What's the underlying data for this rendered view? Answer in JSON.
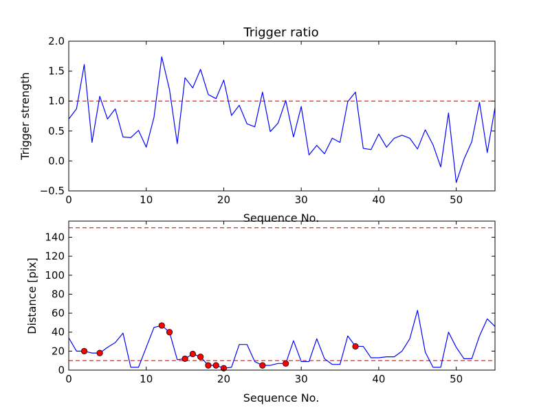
{
  "colors": {
    "line": "#0000ff",
    "threshold": "#ff0000",
    "marker_fill": "#ff0000",
    "marker_edge": "#000000",
    "axis": "#000000"
  },
  "chart_data": [
    {
      "type": "line",
      "title": "Trigger ratio",
      "xlabel": "Sequence No.",
      "ylabel": "Trigger strength",
      "xlim": [
        0,
        55
      ],
      "ylim": [
        -0.5,
        2.0
      ],
      "xticks": [
        0,
        10,
        20,
        30,
        40,
        50
      ],
      "yticks": [
        -0.5,
        0.0,
        0.5,
        1.0,
        1.5,
        2.0
      ],
      "ytick_labels": [
        "−0.5",
        "0.0",
        "0.5",
        "1.0",
        "1.5",
        "2.0"
      ],
      "hlines": [
        1.0
      ],
      "series": [
        {
          "name": "trigger strength",
          "x": [
            0,
            1,
            2,
            3,
            4,
            5,
            6,
            7,
            8,
            9,
            10,
            11,
            12,
            13,
            14,
            15,
            16,
            17,
            18,
            19,
            20,
            21,
            22,
            23,
            24,
            25,
            26,
            27,
            28,
            29,
            30,
            31,
            32,
            33,
            34,
            35,
            36,
            37,
            38,
            39,
            40,
            41,
            42,
            43,
            44,
            45,
            46,
            47,
            48,
            49,
            50,
            51,
            52,
            53,
            54,
            55
          ],
          "values": [
            0.7,
            0.87,
            1.61,
            0.31,
            1.08,
            0.7,
            0.87,
            0.4,
            0.39,
            0.51,
            0.23,
            0.73,
            1.74,
            1.19,
            0.29,
            1.39,
            1.22,
            1.53,
            1.11,
            1.04,
            1.35,
            0.76,
            0.93,
            0.62,
            0.57,
            1.15,
            0.49,
            0.63,
            1.01,
            0.4,
            0.91,
            0.1,
            0.26,
            0.12,
            0.38,
            0.31,
            0.99,
            1.15,
            0.21,
            0.19,
            0.45,
            0.23,
            0.38,
            0.43,
            0.38,
            0.2,
            0.52,
            0.27,
            -0.1,
            0.8,
            -0.36,
            0.03,
            0.32,
            0.98,
            0.14,
            0.89
          ]
        }
      ]
    },
    {
      "type": "line",
      "title": "",
      "xlabel": "Sequence No.",
      "ylabel": "Distance [pix]",
      "xlim": [
        0,
        55
      ],
      "ylim": [
        0,
        157
      ],
      "xticks": [
        0,
        10,
        20,
        30,
        40,
        50
      ],
      "yticks": [
        0,
        20,
        40,
        60,
        80,
        100,
        120,
        140
      ],
      "ytick_labels": [
        "0",
        "20",
        "40",
        "60",
        "80",
        "100",
        "120",
        "140"
      ],
      "hlines": [
        10,
        150
      ],
      "series": [
        {
          "name": "distance",
          "x": [
            0,
            1,
            2,
            3,
            4,
            5,
            6,
            7,
            8,
            9,
            10,
            11,
            12,
            13,
            14,
            15,
            16,
            17,
            18,
            19,
            20,
            21,
            22,
            23,
            24,
            25,
            26,
            27,
            28,
            29,
            30,
            31,
            32,
            33,
            34,
            35,
            36,
            37,
            38,
            39,
            40,
            41,
            42,
            43,
            44,
            45,
            46,
            47,
            48,
            49,
            50,
            51,
            52,
            53,
            54,
            55
          ],
          "values": [
            34,
            20,
            20,
            18,
            18,
            24,
            29,
            39,
            3,
            3,
            24,
            45,
            47,
            40,
            11,
            12,
            17,
            14,
            5,
            5,
            2,
            3,
            27,
            27,
            9,
            5,
            5,
            7,
            7,
            31,
            9,
            9,
            33,
            12,
            6,
            6,
            36,
            25,
            25,
            13,
            13,
            14,
            14,
            20,
            33,
            63,
            19,
            3,
            3,
            40,
            24,
            12,
            12,
            36,
            54,
            46
          ]
        },
        {
          "name": "flagged",
          "type": "scatter",
          "x": [
            2,
            4,
            12,
            13,
            15,
            16,
            17,
            18,
            19,
            20,
            25,
            28,
            37
          ],
          "values": [
            20,
            18,
            47,
            40,
            12,
            17,
            14,
            5,
            5,
            2,
            5,
            7,
            25
          ]
        }
      ]
    }
  ]
}
